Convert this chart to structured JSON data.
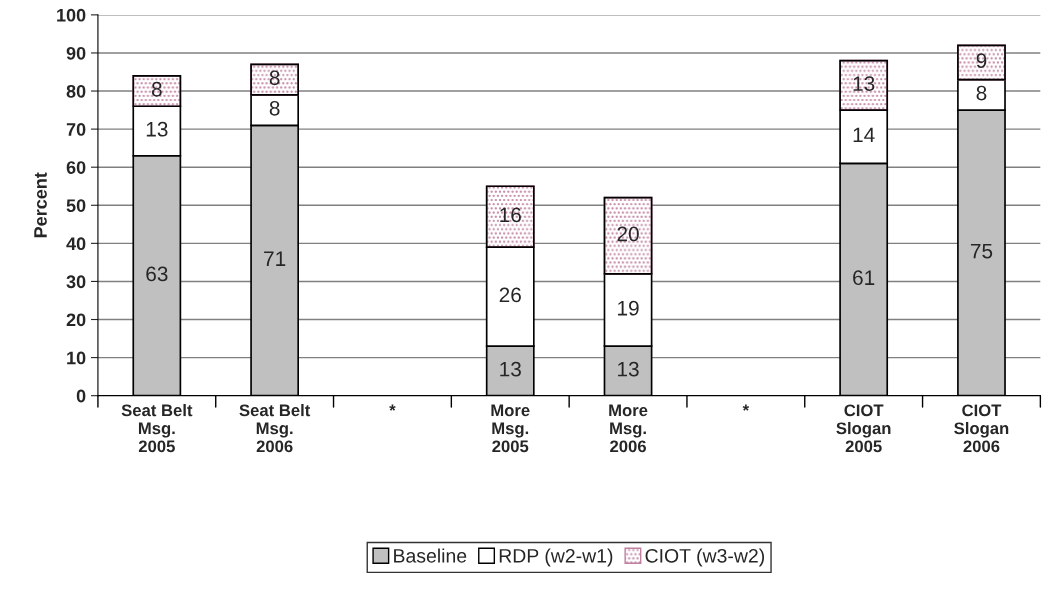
{
  "chart_data": {
    "type": "bar",
    "stacked": true,
    "ylabel": "Percent",
    "categories": [
      "Seat Belt\nMsg.\n2005",
      "Seat Belt\nMsg.\n2006",
      "*",
      "More\nMsg.\n2005",
      "More\nMsg.\n2006",
      "*",
      "CIOT\nSlogan\n2005",
      "CIOT\nSlogan\n2006"
    ],
    "series": [
      {
        "name": "Baseline",
        "color": "#c0c0c0",
        "values": [
          63,
          71,
          null,
          13,
          13,
          null,
          61,
          75
        ]
      },
      {
        "name": "RDP (w2-w1)",
        "color": "#ffffff",
        "values": [
          13,
          8,
          null,
          26,
          19,
          null,
          14,
          8
        ]
      },
      {
        "name": "CIOT (w3-w2)",
        "color": "#c080a0",
        "values": [
          8,
          8,
          null,
          16,
          20,
          null,
          13,
          9
        ]
      }
    ],
    "ylim": [
      0,
      100
    ],
    "yticks": [
      0,
      10,
      20,
      30,
      40,
      50,
      60,
      70,
      80,
      90,
      100
    ],
    "grid": "y",
    "legend": "bottom",
    "data_labels": true
  }
}
